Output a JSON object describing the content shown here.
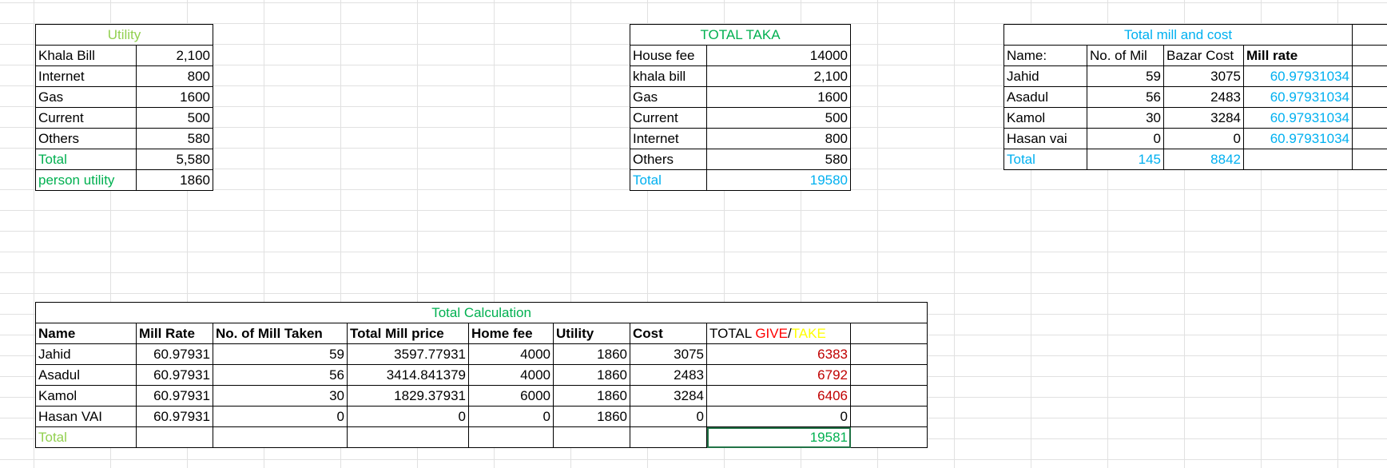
{
  "colors": {
    "green_light": "#92d050",
    "green": "#00b050",
    "blue": "#00b0f0",
    "red": "#ff0000",
    "yellow": "#ffff00",
    "dark_red": "#c00000",
    "grid": "#e1e1e1"
  },
  "utility": {
    "title": "Utility",
    "rows": [
      {
        "label": "Khala Bill",
        "value": "2,100"
      },
      {
        "label": "Internet",
        "value": "800"
      },
      {
        "label": "Gas",
        "value": "1600"
      },
      {
        "label": "Current",
        "value": "500"
      },
      {
        "label": "Others",
        "value": "580"
      }
    ],
    "total_label": "Total",
    "total_value": "5,580",
    "person_label": "person utility",
    "person_value": "1860"
  },
  "total_taka": {
    "title": "TOTAL TAKA",
    "rows": [
      {
        "label": "House fee",
        "value": "14000"
      },
      {
        "label": "khala bill",
        "value": "2,100"
      },
      {
        "label": "Gas",
        "value": "1600"
      },
      {
        "label": "Current",
        "value": "500"
      },
      {
        "label": "Internet",
        "value": "800"
      },
      {
        "label": "Others",
        "value": "580"
      }
    ],
    "total_label": "Total",
    "total_value": "19580"
  },
  "mill_cost": {
    "title": "Total mill and cost",
    "headers": [
      "Name:",
      "No. of Mil",
      "Bazar Cost",
      "Mill rate"
    ],
    "rows": [
      {
        "name": "Jahid",
        "mil": "59",
        "cost": "3075",
        "rate": "60.97931034"
      },
      {
        "name": "Asadul",
        "mil": "56",
        "cost": "2483",
        "rate": "60.97931034"
      },
      {
        "name": "Kamol",
        "mil": "30",
        "cost": "3284",
        "rate": "60.97931034"
      },
      {
        "name": "Hasan vai",
        "mil": "0",
        "cost": "0",
        "rate": "60.97931034"
      }
    ],
    "total_label": "Total",
    "total_mil": "145",
    "total_cost": "8842"
  },
  "calc": {
    "title": "Total Calculation",
    "headers": [
      "Name",
      "Mill Rate",
      "No. of Mill Taken",
      "Total Mill price",
      "Home fee",
      "Utility",
      "Cost"
    ],
    "result_header": {
      "prefix": "TOTAL ",
      "give": "GIVE",
      "slash": "/",
      "take": "TAKE"
    },
    "rows": [
      {
        "name": "Jahid",
        "rate": "60.97931",
        "taken": "59",
        "price": "3597.77931",
        "home": "4000",
        "utility": "1860",
        "cost": "3075",
        "result": "6383"
      },
      {
        "name": "Asadul",
        "rate": "60.97931",
        "taken": "56",
        "price": "3414.841379",
        "home": "4000",
        "utility": "1860",
        "cost": "2483",
        "result": "6792"
      },
      {
        "name": "Kamol",
        "rate": "60.97931",
        "taken": "30",
        "price": "1829.37931",
        "home": "6000",
        "utility": "1860",
        "cost": "3284",
        "result": "6406"
      },
      {
        "name": "Hasan VAI",
        "rate": "60.97931",
        "taken": "0",
        "price": "0",
        "home": "0",
        "utility": "1860",
        "cost": "0",
        "result": "0"
      }
    ],
    "total_label": "Total",
    "total_value": "19581"
  }
}
